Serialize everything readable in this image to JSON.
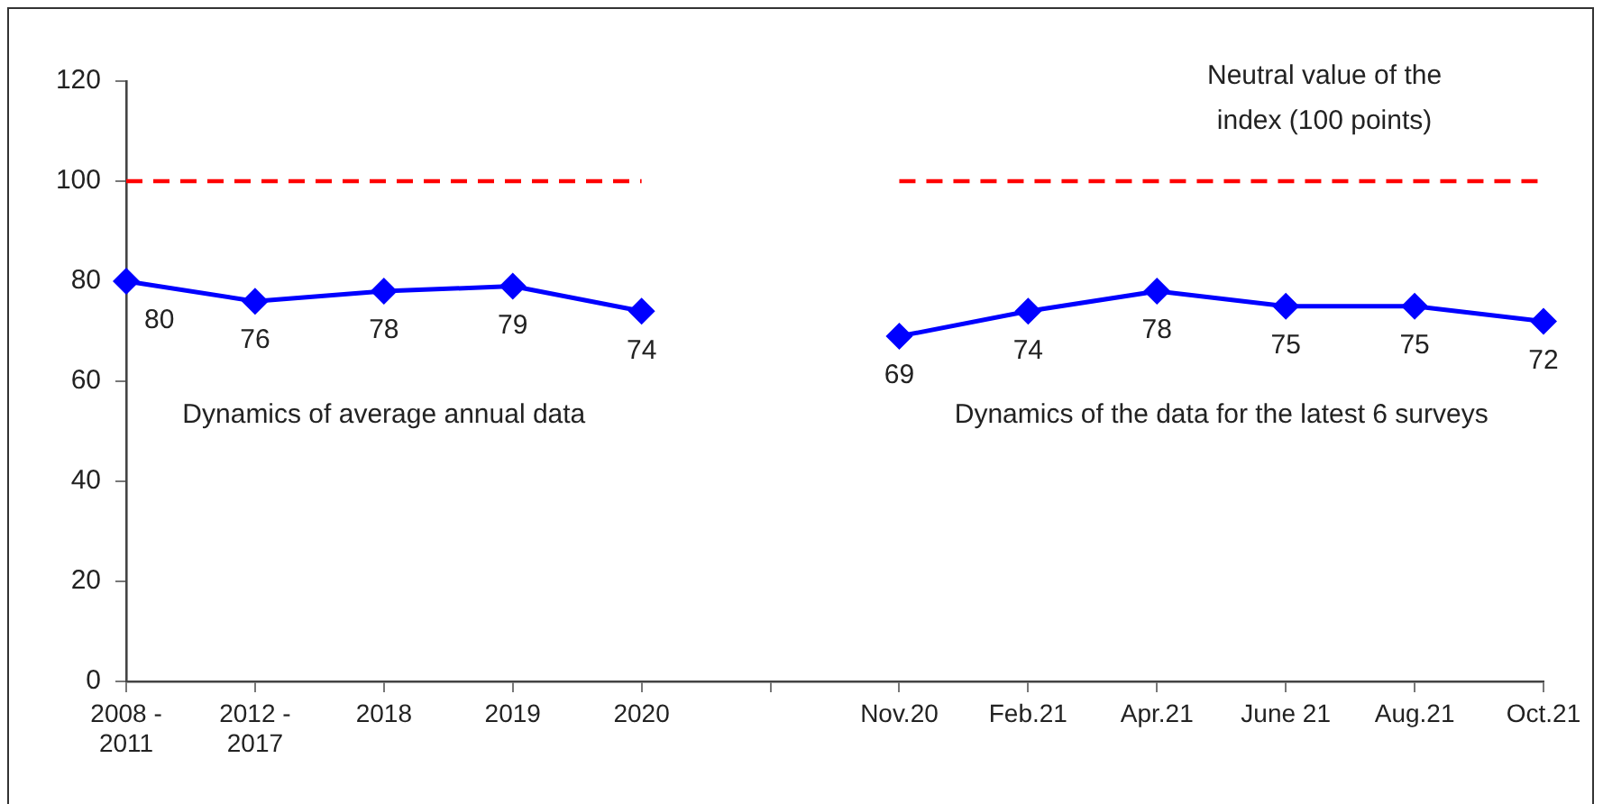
{
  "chart_data": {
    "type": "line",
    "categories": [
      "2008 - 2011",
      "2012 - 2017",
      "2018",
      "2019",
      "2020",
      null,
      "Nov.20",
      "Feb.21",
      "Apr.21",
      "June 21",
      "Aug.21",
      "Oct.21"
    ],
    "series": [
      {
        "color": "#0000ff",
        "values": [
          80,
          76,
          78,
          79,
          74,
          null,
          69,
          74,
          78,
          75,
          75,
          72
        ],
        "value_labels": [
          "80",
          "76",
          "78",
          "79",
          "74",
          null,
          "69",
          "74",
          "78",
          "75",
          "75",
          "72"
        ],
        "marker": "diamond",
        "line_style": "solid"
      },
      {
        "name": "Neutral value of the index (100 points)",
        "color": "#ff0000",
        "values": [
          100,
          100,
          100,
          100,
          100,
          null,
          100,
          100,
          100,
          100,
          100,
          100
        ],
        "marker": "none",
        "line_style": "dashed"
      }
    ],
    "ylim": [
      0,
      120
    ],
    "yticks": [
      0,
      20,
      40,
      60,
      80,
      100,
      120
    ],
    "grid": false,
    "legend": false,
    "annotations": [
      "Dynamics of average annual data",
      "Dynamics of the data for the latest 6 surveys"
    ]
  }
}
